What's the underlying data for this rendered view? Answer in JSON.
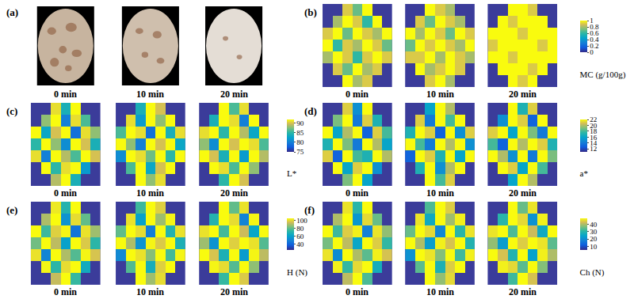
{
  "chart_data": [
    {
      "type": "image",
      "panel": "(a)",
      "labels": [
        "0 min",
        "10 min",
        "20 min"
      ]
    },
    {
      "type": "heatmap",
      "panel": "(b)",
      "colorbar_title": "MC (g/100g)",
      "zlim": [
        0,
        1
      ],
      "zticks": [
        0,
        0.2,
        0.4,
        0.6,
        0.8,
        1
      ],
      "tick_labels": false,
      "maps": [
        {
          "label": "0 min",
          "z": [
            [
              null,
              null,
              0.9,
              0.7,
              1,
              null,
              null
            ],
            [
              null,
              0.8,
              1,
              0.9,
              0.6,
              1,
              null
            ],
            [
              0.9,
              1,
              0.7,
              1,
              0.9,
              0.8,
              1
            ],
            [
              1,
              0.6,
              0.9,
              0.8,
              1,
              0.9,
              0.7
            ],
            [
              0.8,
              1,
              0.9,
              0.6,
              0.9,
              1,
              0.9
            ],
            [
              null,
              0.9,
              0.7,
              1,
              0.8,
              0.9,
              null
            ],
            [
              null,
              null,
              1,
              0.8,
              0.9,
              null,
              null
            ]
          ]
        },
        {
          "label": "10 min",
          "z": [
            [
              null,
              null,
              1,
              0.9,
              0.8,
              null,
              null
            ],
            [
              null,
              0.9,
              0.7,
              1,
              0.9,
              0.8,
              null
            ],
            [
              1,
              0.8,
              1,
              0.9,
              0.7,
              1,
              0.9
            ],
            [
              0.7,
              1,
              0.9,
              1,
              0.9,
              0.8,
              1
            ],
            [
              0.9,
              0.9,
              1,
              0.8,
              1,
              0.9,
              0.8
            ],
            [
              null,
              1,
              0.8,
              0.9,
              1,
              0.9,
              null
            ],
            [
              null,
              null,
              0.9,
              1,
              0.8,
              null,
              null
            ]
          ]
        },
        {
          "label": "20 min",
          "z": [
            [
              null,
              null,
              1,
              1,
              0.9,
              null,
              null
            ],
            [
              null,
              1,
              0.9,
              1,
              1,
              1,
              null
            ],
            [
              1,
              1,
              1,
              0.9,
              1,
              1,
              1
            ],
            [
              0.9,
              1,
              1,
              1,
              1,
              0.9,
              1
            ],
            [
              1,
              1,
              0.9,
              1,
              1,
              1,
              1
            ],
            [
              null,
              1,
              1,
              1,
              0.9,
              1,
              null
            ],
            [
              null,
              null,
              1,
              0.9,
              1,
              null,
              null
            ]
          ]
        }
      ]
    },
    {
      "type": "heatmap",
      "panel": "(c)",
      "colorbar_title": "L*",
      "zlim": [
        75,
        92
      ],
      "zticks": [
        75,
        80,
        85,
        90
      ],
      "tick_labels": false,
      "maps": [
        {
          "label": "0 min",
          "z": [
            [
              null,
              null,
              91,
              84,
              92,
              null,
              null
            ],
            [
              null,
              88,
              92,
              80,
              91,
              86,
              null
            ],
            [
              92,
              83,
              90,
              92,
              79,
              91,
              88
            ],
            [
              85,
              92,
              88,
              81,
              92,
              90,
              84
            ],
            [
              91,
              80,
              92,
              89,
              86,
              92,
              90
            ],
            [
              null,
              92,
              85,
              91,
              92,
              82,
              null
            ],
            [
              null,
              null,
              89,
              92,
              84,
              null,
              null
            ]
          ]
        },
        {
          "label": "10 min",
          "z": [
            [
              null,
              null,
              84,
              92,
              90,
              null,
              null
            ],
            [
              null,
              91,
              82,
              92,
              88,
              92,
              null
            ],
            [
              86,
              92,
              91,
              79,
              92,
              84,
              91
            ],
            [
              92,
              88,
              80,
              92,
              90,
              92,
              83
            ],
            [
              81,
              92,
              91,
              87,
              92,
              85,
              92
            ],
            [
              null,
              86,
              92,
              83,
              90,
              92,
              null
            ],
            [
              null,
              null,
              92,
              88,
              91,
              null,
              null
            ]
          ]
        },
        {
          "label": "20 min",
          "z": [
            [
              null,
              null,
              92,
              86,
              91,
              null,
              null
            ],
            [
              null,
              84,
              92,
              91,
              80,
              92,
              null
            ],
            [
              91,
              92,
              85,
              92,
              89,
              83,
              92
            ],
            [
              88,
              81,
              92,
              90,
              92,
              91,
              86
            ],
            [
              92,
              90,
              84,
              92,
              82,
              92,
              89
            ],
            [
              null,
              92,
              91,
              86,
              92,
              88,
              null
            ],
            [
              null,
              null,
              85,
              92,
              90,
              null,
              null
            ]
          ]
        }
      ]
    },
    {
      "type": "heatmap",
      "panel": "(d)",
      "colorbar_title": "a*",
      "zlim": [
        11,
        22
      ],
      "zticks": [
        12,
        14,
        16,
        18,
        20,
        22
      ],
      "tick_labels": false,
      "maps": [
        {
          "label": "0 min",
          "z": [
            [
              null,
              null,
              21,
              15,
              22,
              null,
              null
            ],
            [
              null,
              19,
              22,
              14,
              21,
              17,
              null
            ],
            [
              22,
              16,
              20,
              22,
              13,
              21,
              18
            ],
            [
              17,
              22,
              19,
              14,
              22,
              20,
              16
            ],
            [
              21,
              13,
              22,
              18,
              17,
              22,
              20
            ],
            [
              null,
              22,
              16,
              21,
              22,
              15,
              null
            ],
            [
              null,
              null,
              19,
              22,
              16,
              null,
              null
            ]
          ]
        },
        {
          "label": "10 min",
          "z": [
            [
              null,
              null,
              16,
              22,
              20,
              null,
              null
            ],
            [
              null,
              21,
              14,
              22,
              18,
              22,
              null
            ],
            [
              17,
              22,
              21,
              13,
              22,
              15,
              21
            ],
            [
              22,
              18,
              14,
              22,
              20,
              22,
              15
            ],
            [
              13,
              22,
              21,
              17,
              22,
              16,
              22
            ],
            [
              null,
              17,
              22,
              15,
              20,
              22,
              null
            ],
            [
              null,
              null,
              22,
              18,
              21,
              null,
              null
            ]
          ]
        },
        {
          "label": "20 min",
          "z": [
            [
              null,
              null,
              22,
              17,
              21,
              null,
              null
            ],
            [
              null,
              15,
              22,
              21,
              13,
              22,
              null
            ],
            [
              21,
              22,
              16,
              22,
              19,
              14,
              22
            ],
            [
              18,
              13,
              22,
              20,
              22,
              21,
              17
            ],
            [
              22,
              20,
              15,
              22,
              14,
              22,
              19
            ],
            [
              null,
              22,
              21,
              16,
              22,
              18,
              null
            ],
            [
              null,
              null,
              16,
              22,
              20,
              null,
              null
            ]
          ]
        }
      ]
    },
    {
      "type": "heatmap",
      "panel": "(e)",
      "colorbar_title": "H (N)",
      "zlim": [
        25,
        105
      ],
      "zticks": [
        40,
        60,
        80,
        100
      ],
      "tick_labels": false,
      "maps": [
        {
          "label": "0 min",
          "z": [
            [
              null,
              null,
              102,
              70,
              105,
              null,
              null
            ],
            [
              null,
              90,
              105,
              55,
              100,
              80,
              null
            ],
            [
              105,
              75,
              98,
              104,
              45,
              101,
              88
            ],
            [
              82,
              105,
              92,
              60,
              105,
              97,
              72
            ],
            [
              101,
              50,
              105,
              90,
              78,
              104,
              96
            ],
            [
              null,
              104,
              72,
              100,
              105,
              65,
              null
            ],
            [
              null,
              null,
              93,
              105,
              74,
              null,
              null
            ]
          ]
        },
        {
          "label": "10 min",
          "z": [
            [
              null,
              null,
              75,
              105,
              98,
              null,
              null
            ],
            [
              null,
              101,
              60,
              105,
              88,
              104,
              null
            ],
            [
              80,
              105,
              100,
              48,
              105,
              70,
              101
            ],
            [
              105,
              90,
              55,
              104,
              97,
              105,
              68
            ],
            [
              52,
              105,
              101,
              85,
              105,
              76,
              104
            ],
            [
              null,
              78,
              105,
              66,
              98,
              105,
              null
            ],
            [
              null,
              null,
              105,
              88,
              100,
              null,
              null
            ]
          ]
        },
        {
          "label": "20 min",
          "z": [
            [
              null,
              null,
              105,
              80,
              101,
              null,
              null
            ],
            [
              null,
              70,
              105,
              100,
              50,
              104,
              null
            ],
            [
              101,
              105,
              76,
              105,
              94,
              62,
              105
            ],
            [
              88,
              55,
              105,
              98,
              105,
              101,
              78
            ],
            [
              105,
              96,
              68,
              105,
              58,
              104,
              92
            ],
            [
              null,
              104,
              100,
              78,
              105,
              86,
              null
            ],
            [
              null,
              null,
              74,
              105,
              97,
              null,
              null
            ]
          ]
        }
      ]
    },
    {
      "type": "heatmap",
      "panel": "(f)",
      "colorbar_title": "Ch (N)",
      "zlim": [
        5,
        48
      ],
      "zticks": [
        10,
        20,
        30,
        40
      ],
      "tick_labels": false,
      "maps": [
        {
          "label": "0 min",
          "z": [
            [
              null,
              null,
              46,
              30,
              48,
              null,
              null
            ],
            [
              null,
              40,
              48,
              22,
              45,
              35,
              null
            ],
            [
              48,
              32,
              44,
              47,
              18,
              46,
              38
            ],
            [
              36,
              48,
              41,
              25,
              48,
              44,
              31
            ],
            [
              46,
              20,
              48,
              40,
              34,
              47,
              43
            ],
            [
              null,
              47,
              31,
              45,
              48,
              27,
              null
            ],
            [
              null,
              null,
              41,
              48,
              33,
              null,
              null
            ]
          ]
        },
        {
          "label": "10 min",
          "z": [
            [
              null,
              null,
              33,
              48,
              44,
              null,
              null
            ],
            [
              null,
              46,
              26,
              48,
              39,
              47,
              null
            ],
            [
              35,
              48,
              45,
              19,
              48,
              30,
              46
            ],
            [
              48,
              40,
              23,
              47,
              43,
              48,
              29
            ],
            [
              21,
              48,
              46,
              37,
              48,
              32,
              47
            ],
            [
              null,
              34,
              48,
              28,
              44,
              48,
              null
            ],
            [
              null,
              null,
              48,
              38,
              45,
              null,
              null
            ]
          ]
        },
        {
          "label": "20 min",
          "z": [
            [
              null,
              null,
              48,
              35,
              46,
              null,
              null
            ],
            [
              null,
              30,
              48,
              45,
              21,
              47,
              null
            ],
            [
              46,
              48,
              33,
              48,
              42,
              26,
              48
            ],
            [
              38,
              23,
              48,
              44,
              48,
              46,
              34
            ],
            [
              48,
              43,
              29,
              48,
              24,
              47,
              40
            ],
            [
              null,
              47,
              45,
              34,
              48,
              37,
              null
            ],
            [
              null,
              null,
              32,
              48,
              43,
              null,
              null
            ]
          ]
        }
      ]
    }
  ]
}
